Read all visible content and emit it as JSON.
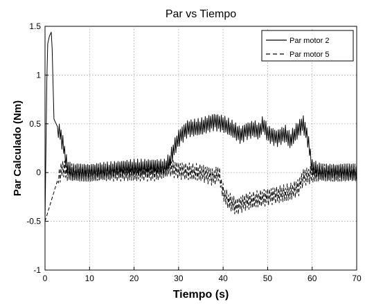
{
  "chart_data": {
    "type": "line",
    "title": "Par vs Tiempo",
    "xlabel": "Tiempo (s)",
    "ylabel": "Par Calculado (Nm)",
    "xlim": [
      0,
      70
    ],
    "ylim": [
      -1,
      1.5
    ],
    "xticks": [
      0,
      10,
      20,
      30,
      40,
      50,
      60,
      70
    ],
    "yticks": [
      -1,
      -0.5,
      0,
      0.5,
      1,
      1.5
    ],
    "grid": true,
    "legend_position": "top-right",
    "series": [
      {
        "name": "Par motor 2",
        "line_style": "solid",
        "color": "#000000",
        "oscillation": 0.09,
        "x": [
          0,
          0.5,
          1,
          1.5,
          2,
          2.5,
          3,
          4,
          5,
          6,
          10,
          20,
          25,
          27,
          28,
          29,
          30,
          32,
          35,
          38,
          40,
          42,
          44,
          45,
          47,
          48,
          49,
          50,
          52,
          54,
          55,
          57,
          58,
          59,
          60,
          62,
          65,
          70
        ],
        "y": [
          -0.5,
          1.3,
          1.4,
          1.45,
          0.55,
          0.5,
          0.45,
          0.3,
          0.05,
          0.0,
          0.0,
          0.05,
          0.05,
          0.05,
          0.12,
          0.25,
          0.35,
          0.45,
          0.47,
          0.52,
          0.5,
          0.45,
          0.38,
          0.42,
          0.45,
          0.42,
          0.5,
          0.4,
          0.35,
          0.4,
          0.33,
          0.45,
          0.5,
          0.35,
          0.05,
          0.0,
          0.0,
          0.0
        ]
      },
      {
        "name": "Par motor 5",
        "line_style": "dashed",
        "color": "#000000",
        "oscillation": 0.09,
        "x": [
          0,
          1,
          2,
          3,
          4,
          5,
          6,
          10,
          20,
          25,
          28,
          30,
          35,
          38,
          39,
          40,
          41,
          43,
          45,
          50,
          55,
          57,
          58,
          60,
          62,
          65,
          70
        ],
        "y": [
          -0.5,
          -0.35,
          -0.2,
          -0.05,
          0.05,
          0.0,
          0.0,
          0.0,
          0.0,
          0.0,
          0.05,
          0.02,
          0.0,
          -0.05,
          0.0,
          -0.2,
          -0.28,
          -0.35,
          -0.3,
          -0.25,
          -0.2,
          -0.15,
          -0.05,
          -0.02,
          0.0,
          0.0,
          0.0
        ]
      }
    ]
  }
}
